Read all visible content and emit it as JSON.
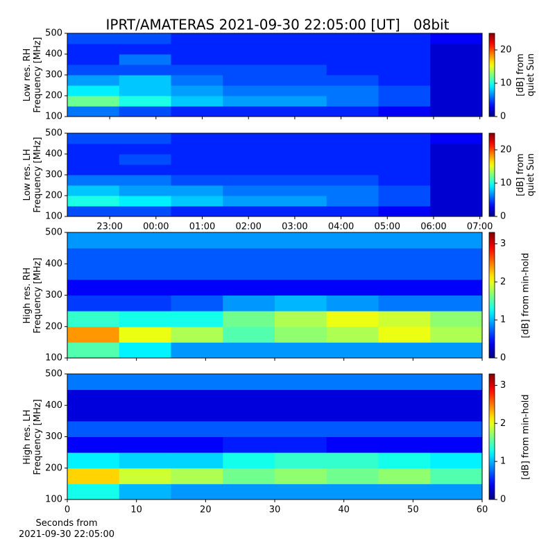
{
  "chart_data": [
    {
      "type": "heatmap",
      "title": "IPRT/AMATERAS 2021-09-30 22:05:00 [UT]   08bit",
      "ylabel": "Low res. RH\nFrequency [MHz]",
      "xlim": [
        22.0833,
        31.05
      ],
      "ylim": [
        100,
        500
      ],
      "yticks": [
        100,
        200,
        300,
        400,
        500
      ],
      "colorbar_label": "[dB] from\nquiet Sun",
      "clim": [
        0,
        25
      ],
      "cticks": [
        0,
        10,
        20
      ],
      "z": [
        [
          6,
          5,
          4,
          4,
          4,
          4,
          3,
          2
        ],
        [
          12,
          10,
          8,
          7,
          7,
          6,
          5,
          2
        ],
        [
          9,
          8,
          7,
          6,
          6,
          6,
          5,
          2
        ],
        [
          7,
          8,
          6,
          5,
          5,
          5,
          4,
          2
        ],
        [
          5,
          5,
          5,
          5,
          5,
          4,
          4,
          2
        ],
        [
          4,
          6,
          4,
          4,
          4,
          4,
          4,
          2
        ],
        [
          4,
          4,
          4,
          4,
          4,
          4,
          4,
          2
        ],
        [
          5,
          5,
          4,
          4,
          4,
          4,
          4,
          3
        ]
      ]
    },
    {
      "type": "heatmap",
      "ylabel": "Low res. LH\nFrequency [MHz]",
      "xlim": [
        22.0833,
        31.05
      ],
      "ylim": [
        100,
        500
      ],
      "yticks": [
        100,
        200,
        300,
        400,
        500
      ],
      "xticks": [
        {
          "value": 23,
          "label": "23:00"
        },
        {
          "value": 24,
          "label": "00:00"
        },
        {
          "value": 25,
          "label": "01:00"
        },
        {
          "value": 26,
          "label": "02:00"
        },
        {
          "value": 27,
          "label": "03:00"
        },
        {
          "value": 28,
          "label": "04:00"
        },
        {
          "value": 29,
          "label": "05:00"
        },
        {
          "value": 30,
          "label": "06:00"
        },
        {
          "value": 31,
          "label": "07:00"
        }
      ],
      "colorbar_label": "[dB] from\nquiet Sun",
      "clim": [
        0,
        25
      ],
      "cticks": [
        0,
        10,
        20
      ],
      "z": [
        [
          5,
          5,
          4,
          4,
          4,
          4,
          3,
          2
        ],
        [
          10,
          9,
          8,
          7,
          7,
          6,
          5,
          2
        ],
        [
          8,
          7,
          7,
          6,
          6,
          6,
          5,
          2
        ],
        [
          6,
          6,
          5,
          5,
          5,
          5,
          4,
          2
        ],
        [
          4,
          4,
          4,
          4,
          4,
          4,
          4,
          2
        ],
        [
          4,
          5,
          4,
          4,
          4,
          4,
          4,
          2
        ],
        [
          4,
          4,
          4,
          4,
          4,
          4,
          4,
          2
        ],
        [
          5,
          5,
          4,
          4,
          4,
          4,
          4,
          3
        ]
      ]
    },
    {
      "type": "heatmap",
      "ylabel": "High res. RH\nFrequency [MHz]",
      "xlim": [
        0,
        60
      ],
      "ylim": [
        100,
        500
      ],
      "yticks": [
        100,
        200,
        300,
        400,
        500
      ],
      "colorbar_label": "[dB] from min-hold",
      "clim": [
        0,
        3.3
      ],
      "cticks": [
        0,
        1,
        2,
        3
      ],
      "z": [
        [
          1.5,
          1.2,
          0.9,
          0.9,
          0.9,
          0.9,
          0.9,
          0.9
        ],
        [
          2.4,
          2.0,
          1.8,
          1.5,
          1.7,
          1.8,
          2.0,
          1.8
        ],
        [
          1.4,
          1.3,
          1.3,
          1.6,
          1.8,
          2.0,
          1.9,
          1.7
        ],
        [
          0.6,
          0.6,
          0.7,
          0.9,
          1.0,
          0.9,
          0.8,
          0.8
        ],
        [
          0.4,
          0.4,
          0.4,
          0.4,
          0.4,
          0.4,
          0.4,
          0.4
        ],
        [
          0.7,
          0.7,
          0.7,
          0.7,
          0.7,
          0.7,
          0.7,
          0.7
        ],
        [
          0.7,
          0.7,
          0.7,
          0.7,
          0.7,
          0.7,
          0.7,
          0.7
        ],
        [
          0.9,
          0.9,
          0.9,
          0.9,
          0.9,
          0.9,
          0.9,
          0.9
        ]
      ]
    },
    {
      "type": "heatmap",
      "ylabel": "High res. LH\nFrequency [MHz]",
      "xlim": [
        0,
        60
      ],
      "ylim": [
        100,
        500
      ],
      "yticks": [
        100,
        200,
        300,
        400,
        500
      ],
      "xticks": [
        0,
        10,
        20,
        30,
        40,
        50,
        60
      ],
      "xlabel": "Seconds from\n2021-09-30 22:05:00",
      "colorbar_label": "[dB] from min-hold",
      "clim": [
        0,
        3.3
      ],
      "cticks": [
        0,
        1,
        2,
        3
      ],
      "z": [
        [
          1.3,
          1.0,
          0.9,
          0.9,
          0.9,
          0.9,
          0.9,
          0.9
        ],
        [
          2.2,
          1.9,
          1.8,
          1.6,
          1.7,
          1.6,
          1.7,
          1.5
        ],
        [
          1.2,
          1.1,
          1.1,
          1.3,
          1.4,
          1.4,
          1.3,
          1.2
        ],
        [
          0.4,
          0.4,
          0.4,
          0.5,
          0.5,
          0.4,
          0.4,
          0.4
        ],
        [
          0.7,
          0.7,
          0.7,
          0.7,
          0.7,
          0.7,
          0.7,
          0.7
        ],
        [
          0.3,
          0.3,
          0.3,
          0.3,
          0.3,
          0.3,
          0.3,
          0.3
        ],
        [
          0.3,
          0.3,
          0.3,
          0.3,
          0.3,
          0.3,
          0.3,
          0.3
        ],
        [
          0.8,
          0.8,
          0.8,
          0.8,
          0.8,
          0.8,
          0.8,
          0.8
        ]
      ]
    }
  ]
}
